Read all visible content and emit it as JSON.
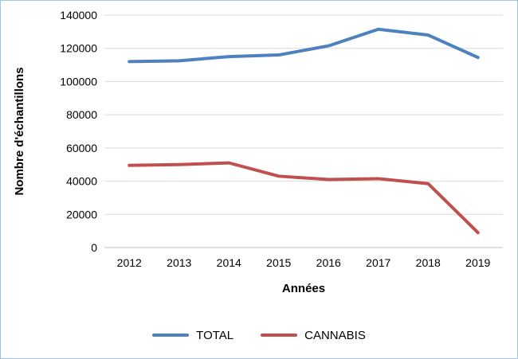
{
  "chart_data": {
    "type": "line",
    "title": "",
    "categories": [
      "2012",
      "2013",
      "2014",
      "2015",
      "2016",
      "2017",
      "2018",
      "2019"
    ],
    "series": [
      {
        "name": "TOTAL",
        "color": "#4F81BD",
        "values": [
          112000,
          112500,
          115000,
          116000,
          121500,
          131500,
          128000,
          114500
        ]
      },
      {
        "name": "CANNABIS",
        "color": "#C0504D",
        "values": [
          49500,
          50000,
          51000,
          43000,
          41000,
          41500,
          38500,
          9000
        ]
      }
    ],
    "xlabel": "Années",
    "ylabel": "Nombre d'échantillons",
    "ylim": [
      0,
      140000
    ],
    "ytick_step": 20000,
    "grid": true,
    "legend_position": "bottom",
    "styles": {
      "gridline_color": "#D9D9D9",
      "axis_line_color": "#BFBFBF",
      "border_color": "#9DC3E6",
      "text_color": "#000000"
    }
  }
}
